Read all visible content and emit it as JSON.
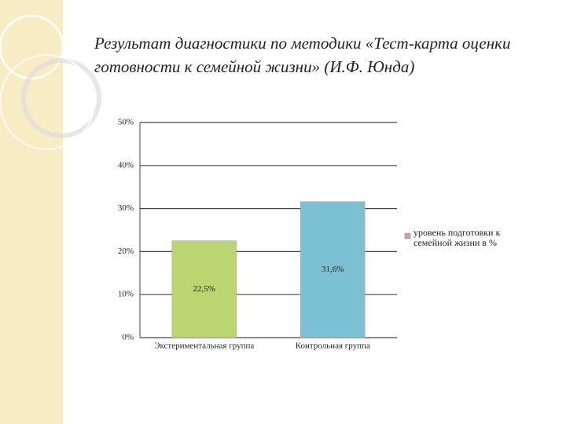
{
  "chart_data": {
    "type": "bar",
    "title": "Результат диагностики по методики «Тест-карта оценки готовности к семейной жизни» (И.Ф. Юнда)",
    "categories": [
      "Экстериментальная группа",
      "Контрольная группа"
    ],
    "series": [
      {
        "name": "уровень подготовки к семейной жизни в %",
        "color": "#c8a2a8",
        "values": [
          22.5,
          31.6
        ],
        "value_labels": [
          "22,5%",
          "31,6%"
        ],
        "colors": [
          "#b9d670",
          "#7cc0d4"
        ]
      }
    ],
    "ylim": [
      0,
      50
    ],
    "yticks": [
      {
        "value": 0,
        "label": "0%"
      },
      {
        "value": 10,
        "label": "10%"
      },
      {
        "value": 20,
        "label": "20%"
      },
      {
        "value": 30,
        "label": "30%"
      },
      {
        "value": 40,
        "label": "40%"
      },
      {
        "value": 50,
        "label": "50%"
      }
    ],
    "grid": true,
    "legend": "right"
  }
}
